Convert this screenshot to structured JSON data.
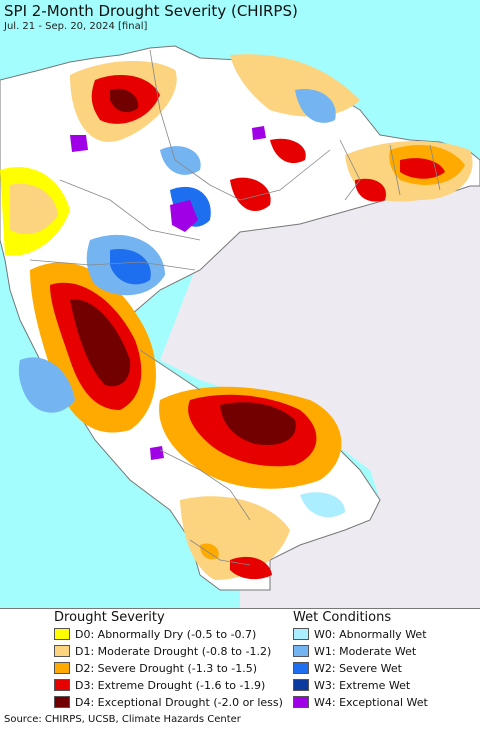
{
  "title": "SPI 2-Month Drought Severity (CHIRPS)",
  "subtitle": "Jul. 21 - Sep. 20, 2024 [final]",
  "legend": {
    "drought_title": "Drought Severity",
    "drought_items": [
      {
        "label": "D0: Abnormally Dry (-0.5 to -0.7)",
        "color": "#ffff00"
      },
      {
        "label": "D1: Moderate Drought (-0.8 to -1.2)",
        "color": "#fcd37f"
      },
      {
        "label": "D2: Severe Drought (-1.3 to -1.5)",
        "color": "#ffaa00"
      },
      {
        "label": "D3: Extreme Drought (-1.6 to -1.9)",
        "color": "#e60000"
      },
      {
        "label": "D4: Exceptional Drought (-2.0 or less)",
        "color": "#730000"
      }
    ],
    "wet_title": "Wet Conditions",
    "wet_items": [
      {
        "label": "W0: Abnormally Wet",
        "color": "#aaeeff"
      },
      {
        "label": "W1: Moderate Wet",
        "color": "#74b4f0"
      },
      {
        "label": "W2: Severe Wet",
        "color": "#1e6ef0"
      },
      {
        "label": "W3: Extreme Wet",
        "color": "#0a3ca0"
      },
      {
        "label": "W4: Exceptional Wet",
        "color": "#a000e6"
      }
    ]
  },
  "source": "Source: CHIRPS, UCSB, Climate Hazards Center",
  "colors": {
    "ocean": "#a3fdfd",
    "land_outside": "#eeeaf2",
    "land_normal": "#ffffff",
    "borders": "#888888"
  }
}
